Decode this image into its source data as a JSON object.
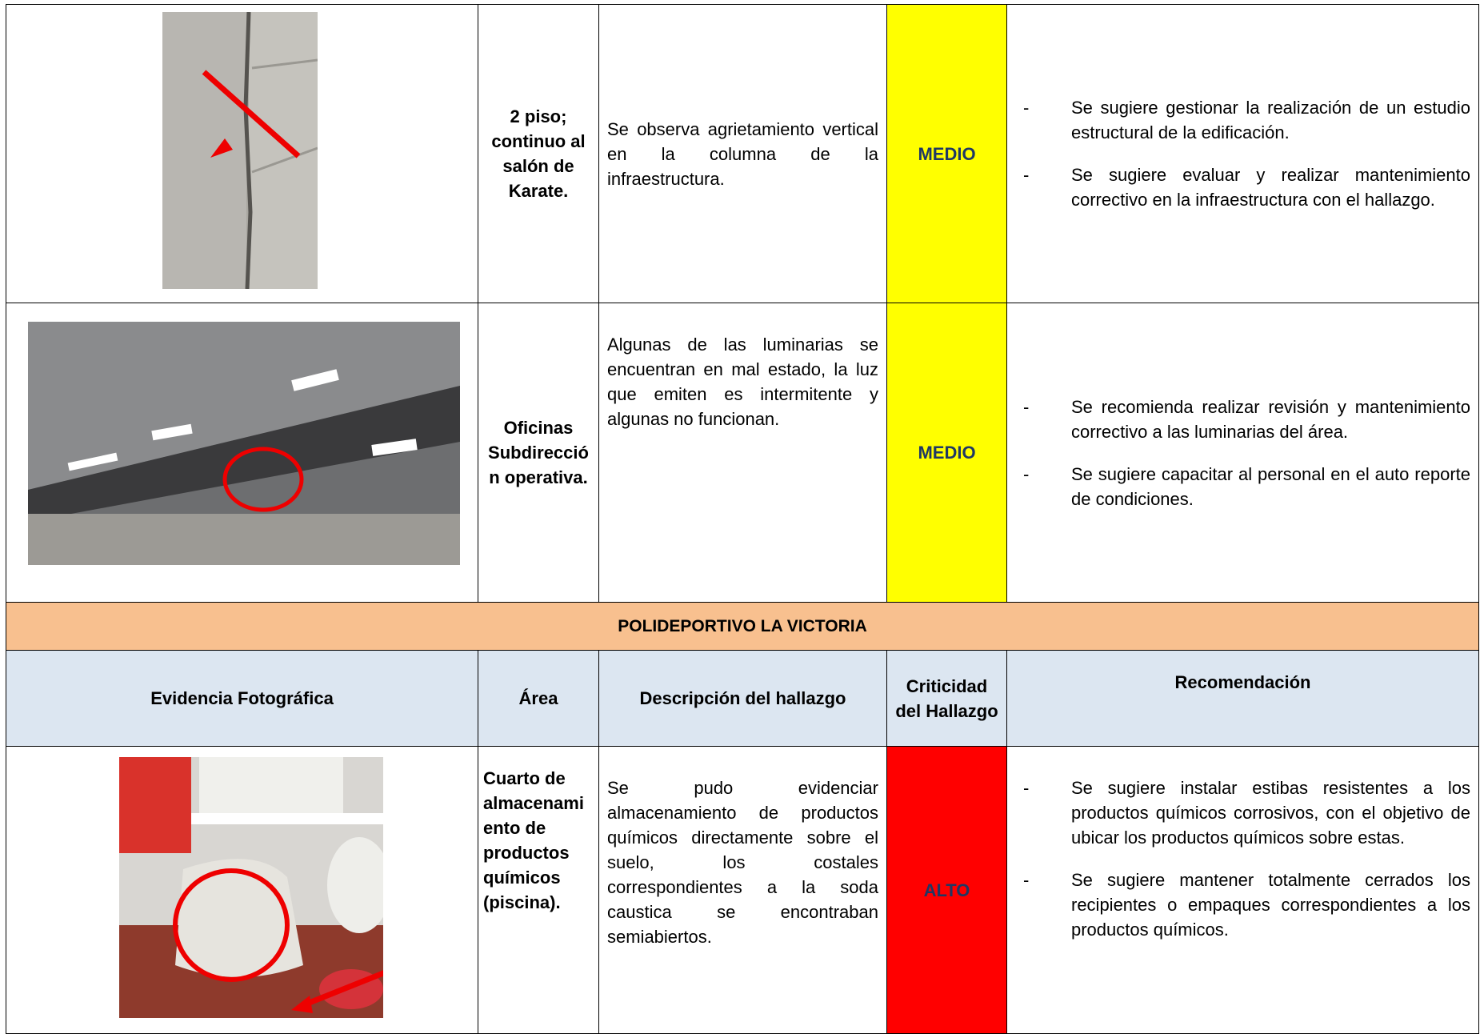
{
  "table": {
    "rows_top": [
      {
        "area": "2 piso; continuo al salón de Karate.",
        "description": "Se observa agrietamiento vertical en la columna de la infraestructura.",
        "criticality": "MEDIO",
        "recommendations": [
          "Se sugiere gestionar la realización de un estudio estructural de la edificación.",
          "Se sugiere evaluar y realizar mantenimiento correctivo en la infraestructura con el hallazgo."
        ]
      },
      {
        "area": "Oficinas Subdirección operativa.",
        "description": "Algunas de las luminarias se encuentran en mal estado, la luz que emiten es intermitente y algunas no funcionan.",
        "criticality": "MEDIO",
        "recommendations": [
          "Se recomienda realizar revisión y mantenimiento correctivo a las luminarias del área.",
          "Se sugiere capacitar al personal en el auto reporte de condiciones."
        ]
      }
    ],
    "section_title": "POLIDEPORTIVO LA VICTORIA",
    "headers": [
      "Evidencia Fotográfica",
      "Área",
      "Descripción del hallazgo",
      "Criticidad del Hallazgo",
      "Recomendación"
    ],
    "rows_bottom": [
      {
        "area": "Cuarto de almacenamiento de productos químicos (piscina).",
        "description": "Se pudo evidenciar almacenamiento de productos químicos directamente sobre el suelo, los costales correspondientes a la soda caustica se encontraban semiabiertos.",
        "criticality": "ALTO",
        "recommendations": [
          "Se sugiere instalar estibas resistentes a los productos químicos corrosivos, con el objetivo de ubicar los productos químicos sobre estas.",
          "Se sugiere mantener totalmente cerrados los recipientes o empaques correspondientes a los productos químicos."
        ]
      }
    ]
  }
}
